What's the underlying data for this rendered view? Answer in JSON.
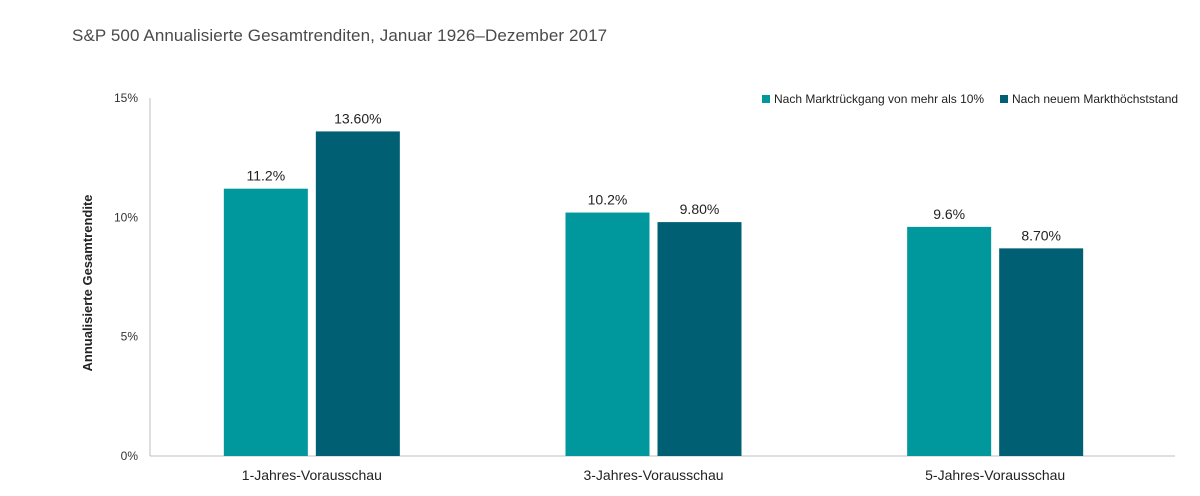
{
  "chart_data": {
    "type": "bar",
    "title": "S&P 500 Annualisierte Gesamtrenditen, Januar 1926–Dezember 2017",
    "ylabel": "Annualisierte Gesamtrendite",
    "xlabel": "",
    "ylim": [
      0,
      15
    ],
    "yticks": [
      0,
      5,
      10,
      15
    ],
    "ytick_labels": [
      "0%",
      "5%",
      "10%",
      "15%"
    ],
    "categories": [
      "1-Jahres-Vorausschau",
      "3-Jahres-Vorausschau",
      "5-Jahres-Vorausschau"
    ],
    "series": [
      {
        "name": "Nach Marktrückgang von mehr als 10%",
        "values": [
          11.2,
          10.2,
          9.6
        ],
        "labels": [
          "11.2%",
          "10.2%",
          "9.6%"
        ],
        "color": "#00979d"
      },
      {
        "name": "Nach neuem Markthöchststand",
        "values": [
          13.6,
          9.8,
          8.7
        ],
        "labels": [
          "13.60%",
          "9.80%",
          "8.70%"
        ],
        "color": "#005f73"
      }
    ],
    "legend_position": "top-right",
    "grid": false
  }
}
